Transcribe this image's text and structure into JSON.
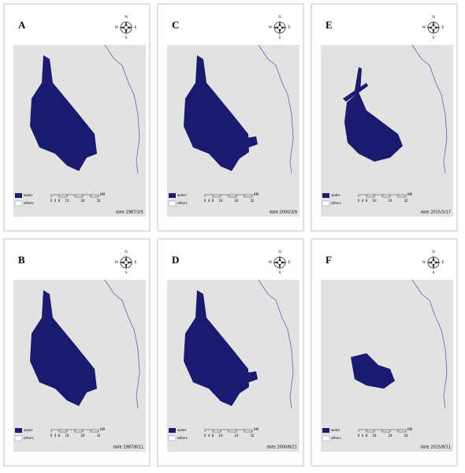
{
  "panels": [
    {
      "letter": "A",
      "date": "date 1987/3/5"
    },
    {
      "letter": "C",
      "date": "date 2000/3/9"
    },
    {
      "letter": "E",
      "date": "date 2015/3/17"
    },
    {
      "letter": "B",
      "date": "date 1987/8/11"
    },
    {
      "letter": "D",
      "date": "date 2000/8/21"
    },
    {
      "letter": "F",
      "date": "date 2015/8/11"
    }
  ],
  "scale": {
    "ticks": [
      "0",
      "4",
      "8",
      "16",
      "24",
      "32"
    ],
    "unit": "KM"
  },
  "legend": {
    "water": "water",
    "others": "others"
  },
  "compass": [
    "N",
    "S",
    "E",
    "W"
  ]
}
